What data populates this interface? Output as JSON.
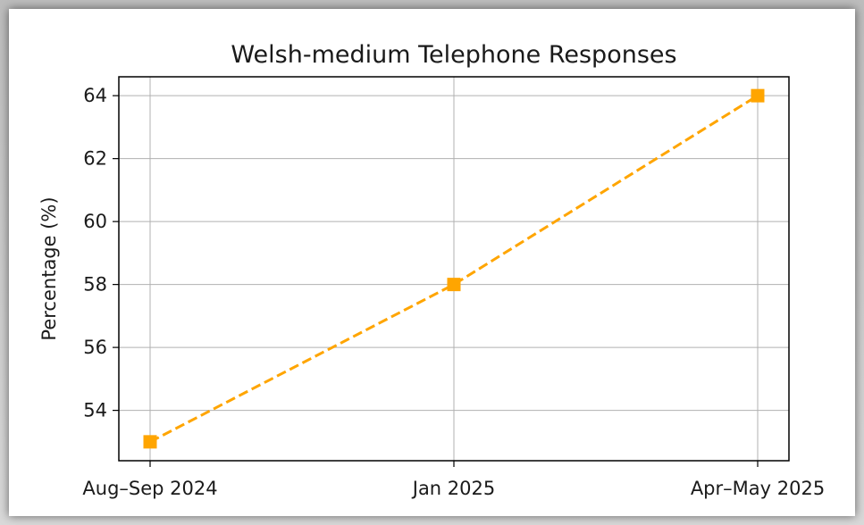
{
  "chart_data": {
    "type": "line",
    "title": "Welsh-medium Telephone Responses",
    "xlabel": "",
    "ylabel": "Percentage (%)",
    "categories": [
      "Aug–Sep 2024",
      "Jan 2025",
      "Apr–May 2025"
    ],
    "series": [
      {
        "values": [
          53,
          58,
          64
        ],
        "color": "#FFA500",
        "line_style": "dashed",
        "marker": "square"
      }
    ],
    "ylim": [
      52.4,
      64.6
    ],
    "yticks": [
      "54",
      "56",
      "58",
      "60",
      "62",
      "64"
    ],
    "grid": true,
    "legend": "none"
  }
}
